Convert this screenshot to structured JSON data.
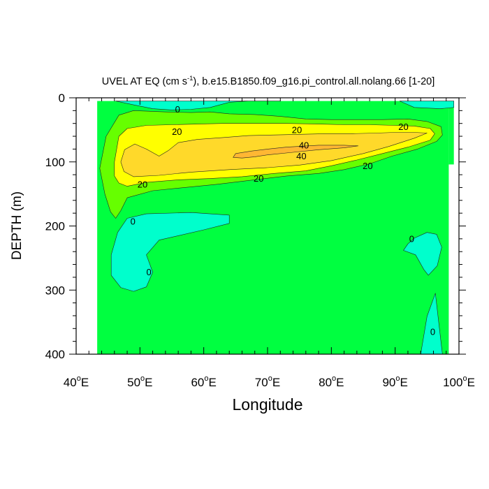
{
  "chart_data": {
    "type": "contour",
    "title": {
      "main": "UVEL AT EQ (cm s",
      "sup": "-1",
      "rest": "), b.e15.B1850.f09_g16.pi_control.all.nolang.66 [1-20]"
    },
    "xlabel": "Longitude",
    "ylabel": "DEPTH (m)",
    "xlim": [
      40,
      100
    ],
    "ylim": [
      0,
      400
    ],
    "y_inverted": true,
    "xticks": [
      {
        "value": 40,
        "label": "40",
        "unit": "o",
        "suffix": "E"
      },
      {
        "value": 50,
        "label": "50",
        "unit": "o",
        "suffix": "E"
      },
      {
        "value": 60,
        "label": "60",
        "unit": "o",
        "suffix": "E"
      },
      {
        "value": 70,
        "label": "70",
        "unit": "o",
        "suffix": "E"
      },
      {
        "value": 80,
        "label": "80",
        "unit": "o",
        "suffix": "E"
      },
      {
        "value": 90,
        "label": "90",
        "unit": "o",
        "suffix": "E"
      },
      {
        "value": 100,
        "label": "100",
        "unit": "o",
        "suffix": "E"
      }
    ],
    "yticks": [
      {
        "value": 0,
        "label": "0"
      },
      {
        "value": 100,
        "label": "100"
      },
      {
        "value": 200,
        "label": "200"
      },
      {
        "value": 300,
        "label": "300"
      },
      {
        "value": 400,
        "label": "400"
      }
    ],
    "data_domain": {
      "x": [
        43.3,
        98.4
      ],
      "y": [
        5,
        400
      ]
    },
    "levels": [
      {
        "name": "lt0",
        "color": "#00ffcc"
      },
      {
        "name": "0-10",
        "color": "#00ff40"
      },
      {
        "name": "10-20",
        "color": "#66ff00"
      },
      {
        "name": "20-30",
        "color": "#ffff00"
      },
      {
        "name": "30-40",
        "color": "#ffd92a"
      },
      {
        "name": "gt40",
        "color": "#ffb733"
      }
    ],
    "regions": [
      {
        "name": "surface-negative-west",
        "level": "lt0",
        "points": [
          [
            46.2,
            5
          ],
          [
            49,
            11
          ],
          [
            52,
            17
          ],
          [
            55,
            19
          ],
          [
            58,
            18
          ],
          [
            61,
            15
          ],
          [
            64,
            7
          ],
          [
            67,
            5
          ],
          [
            72,
            5
          ]
        ]
      },
      {
        "name": "surface-negative-east",
        "level": "lt0",
        "points": [
          [
            90.7,
            5
          ],
          [
            93,
            15
          ],
          [
            97,
            17
          ],
          [
            99.2,
            15
          ],
          [
            99.2,
            5
          ]
        ]
      },
      {
        "name": "deep-negative-west",
        "level": "lt0",
        "points": [
          [
            48,
            188
          ],
          [
            51,
            181
          ],
          [
            58,
            179
          ],
          [
            64,
            183
          ],
          [
            64,
            196
          ],
          [
            60,
            206
          ],
          [
            53,
            222
          ],
          [
            51,
            245
          ],
          [
            52,
            272
          ],
          [
            51,
            295
          ],
          [
            49,
            302
          ],
          [
            47,
            296
          ],
          [
            45.5,
            277
          ],
          [
            45.5,
            245
          ],
          [
            46.5,
            210
          ]
        ]
      },
      {
        "name": "deep-negative-east-upper",
        "level": "lt0",
        "points": [
          [
            93,
            219
          ],
          [
            95,
            210
          ],
          [
            96.5,
            213
          ],
          [
            97.3,
            233
          ],
          [
            96.6,
            262
          ],
          [
            95.2,
            277
          ],
          [
            94.5,
            268
          ],
          [
            93.2,
            245
          ],
          [
            91.3,
            238
          ],
          [
            92,
            228
          ]
        ]
      },
      {
        "name": "deep-negative-east-lower",
        "level": "lt0",
        "points": [
          [
            94,
            400
          ],
          [
            95,
            341
          ],
          [
            96.3,
            305
          ],
          [
            97.4,
            400
          ]
        ]
      },
      {
        "name": "core-10",
        "level": "10-20",
        "points": [
          [
            44.7,
            60
          ],
          [
            46.7,
            27
          ],
          [
            49,
            20
          ],
          [
            54,
            22
          ],
          [
            58,
            23
          ],
          [
            61,
            22
          ],
          [
            64,
            25
          ],
          [
            68,
            26
          ],
          [
            72,
            29
          ],
          [
            76,
            33
          ],
          [
            80,
            34
          ],
          [
            84,
            34
          ],
          [
            88,
            34
          ],
          [
            92,
            33
          ],
          [
            95,
            37
          ],
          [
            97.2,
            45
          ],
          [
            97.4,
            58
          ],
          [
            96.5,
            68
          ],
          [
            93.5,
            80
          ],
          [
            89.5,
            91
          ],
          [
            86,
            103
          ],
          [
            82,
            112
          ],
          [
            78,
            118
          ],
          [
            73,
            122
          ],
          [
            67,
            129
          ],
          [
            62,
            135
          ],
          [
            57,
            140
          ],
          [
            52,
            145
          ],
          [
            48,
            156
          ],
          [
            47,
            176
          ],
          [
            46.2,
            188
          ],
          [
            45.4,
            178
          ],
          [
            44.5,
            150
          ],
          [
            43.7,
            110
          ]
        ]
      },
      {
        "name": "core-20",
        "level": "20-30",
        "points": [
          [
            46,
            100
          ],
          [
            46.7,
            60
          ],
          [
            48,
            48
          ],
          [
            51,
            43
          ],
          [
            55,
            42
          ],
          [
            59,
            41
          ],
          [
            63,
            40
          ],
          [
            68,
            40
          ],
          [
            73,
            40
          ],
          [
            78,
            41
          ],
          [
            82,
            42
          ],
          [
            86,
            42
          ],
          [
            90,
            43
          ],
          [
            93,
            44
          ],
          [
            95.5,
            48
          ],
          [
            96.2,
            56
          ],
          [
            95.5,
            66
          ],
          [
            92,
            77
          ],
          [
            88,
            87
          ],
          [
            84,
            97
          ],
          [
            80,
            106
          ],
          [
            76,
            114
          ],
          [
            71,
            118
          ],
          [
            66,
            123
          ],
          [
            61,
            126
          ],
          [
            56,
            128
          ],
          [
            51,
            132
          ],
          [
            48,
            138
          ],
          [
            46.7,
            133
          ],
          [
            46,
            122
          ]
        ]
      },
      {
        "name": "core-30",
        "level": "30-40",
        "points": [
          [
            47,
            100
          ],
          [
            47.6,
            81
          ],
          [
            49.2,
            72
          ],
          [
            51,
            80
          ],
          [
            53,
            91
          ],
          [
            54.5,
            82
          ],
          [
            56,
            70
          ],
          [
            59,
            65
          ],
          [
            63,
            62
          ],
          [
            67,
            59
          ],
          [
            71,
            58
          ],
          [
            75,
            57
          ],
          [
            79,
            56
          ],
          [
            83,
            56
          ],
          [
            87,
            55
          ],
          [
            90,
            54
          ],
          [
            93,
            54
          ],
          [
            95,
            55
          ],
          [
            93,
            63
          ],
          [
            89,
            76
          ],
          [
            85,
            87
          ],
          [
            80,
            98
          ],
          [
            75,
            105
          ],
          [
            70,
            109
          ],
          [
            64,
            112
          ],
          [
            58,
            116
          ],
          [
            53,
            121
          ],
          [
            49,
            123
          ],
          [
            47.5,
            115
          ]
        ]
      },
      {
        "name": "core-40",
        "level": "gt40",
        "points": [
          [
            64.6,
            93
          ],
          [
            65,
            87
          ],
          [
            67.5,
            83
          ],
          [
            70,
            80
          ],
          [
            73,
            77
          ],
          [
            78,
            74
          ],
          [
            82,
            74
          ],
          [
            84.2,
            75
          ],
          [
            82,
            78
          ],
          [
            78,
            81
          ],
          [
            74,
            85
          ],
          [
            70,
            89
          ],
          [
            68,
            92
          ],
          [
            66,
            94
          ]
        ]
      }
    ],
    "contour_labels": [
      {
        "text": "0",
        "x": 55.9,
        "y": 18
      },
      {
        "text": "20",
        "x": 55.8,
        "y": 53
      },
      {
        "text": "20",
        "x": 74.6,
        "y": 50
      },
      {
        "text": "20",
        "x": 91.3,
        "y": 45
      },
      {
        "text": "40",
        "x": 75.7,
        "y": 74
      },
      {
        "text": "40",
        "x": 75.3,
        "y": 91
      },
      {
        "text": "20",
        "x": 85.7,
        "y": 106
      },
      {
        "text": "20",
        "x": 68.6,
        "y": 126
      },
      {
        "text": "20",
        "x": 50.4,
        "y": 135
      },
      {
        "text": "0",
        "x": 48.9,
        "y": 193
      },
      {
        "text": "0",
        "x": 51.4,
        "y": 272
      },
      {
        "text": "0",
        "x": 92.6,
        "y": 220
      },
      {
        "text": "0",
        "x": 95.9,
        "y": 365
      }
    ]
  }
}
